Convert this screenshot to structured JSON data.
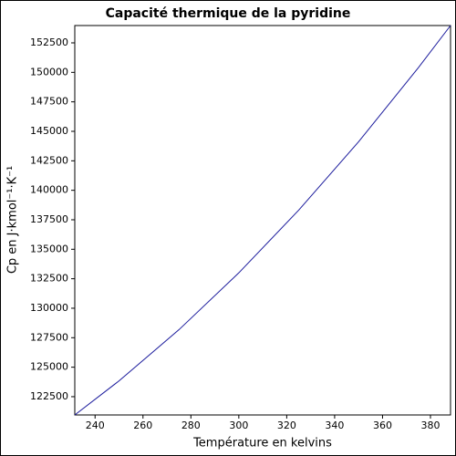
{
  "chart_data": {
    "type": "line",
    "title": "Capacité thermique de la pyridine",
    "x_label": "Température en kelvins",
    "y_label": "Cp en J·kmol⁻¹·K⁻¹",
    "x": [
      231.53,
      250,
      275,
      300,
      325,
      350,
      375,
      388.38
    ],
    "series": [
      {
        "name": "Cp",
        "color": "#1a1a9c",
        "values": [
          120950,
          123840,
          128176,
          133000,
          138313,
          144114,
          150404,
          153970
        ]
      }
    ],
    "xlim": [
      231.53,
      388.38
    ],
    "ylim": [
      120950,
      153970
    ],
    "xticks": [
      240,
      260,
      280,
      300,
      320,
      340,
      360,
      380
    ],
    "yticks": [
      122500,
      125000,
      127500,
      130000,
      132500,
      135000,
      137500,
      140000,
      142500,
      145000,
      147500,
      150000,
      152500
    ],
    "grid": false
  }
}
